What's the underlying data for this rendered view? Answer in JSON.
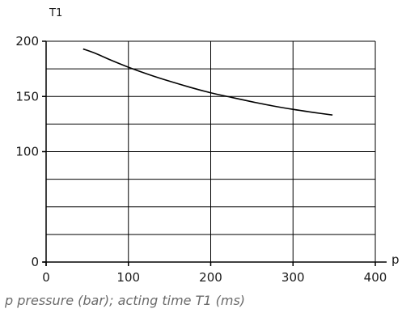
{
  "chart_data": {
    "type": "line",
    "title": "",
    "xlabel": "p",
    "ylabel": "T1",
    "xlim": [
      0,
      400
    ],
    "ylim": [
      0,
      200
    ],
    "x_ticks": [
      0,
      100,
      200,
      300,
      400
    ],
    "y_ticks": [
      0,
      100,
      150,
      200
    ],
    "grid_x": [
      100,
      200,
      300,
      400
    ],
    "grid_y": [
      25,
      50,
      75,
      100,
      125,
      150,
      175,
      200
    ],
    "grid": true,
    "legend": "none",
    "series": [
      {
        "x": [
          45,
          60,
          80,
          100,
          125,
          150,
          175,
          200,
          225,
          250,
          275,
          300,
          325,
          348
        ],
        "y": [
          193,
          189,
          182.5,
          176.5,
          169.8,
          163.8,
          158.3,
          153.3,
          149.2,
          145.2,
          141.5,
          138.3,
          135.5,
          133.2
        ]
      }
    ],
    "line_color": "#000000",
    "grid_color": "#000000"
  },
  "caption": "p pressure (bar); acting time T1 (ms)"
}
